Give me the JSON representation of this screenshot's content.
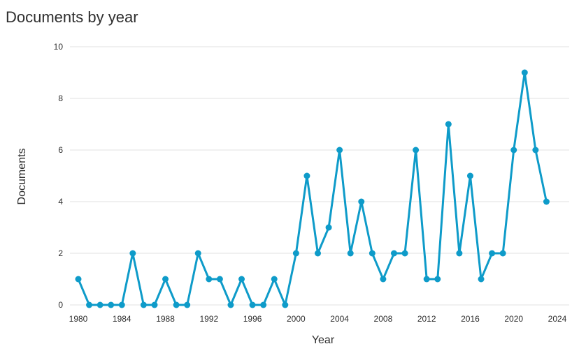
{
  "header": {
    "title": "Documents by year"
  },
  "chart_data": {
    "type": "line",
    "title": "Documents by year",
    "xlabel": "Year",
    "ylabel": "Documents",
    "xlim": [
      1980,
      2024
    ],
    "ylim": [
      0,
      10
    ],
    "grid": true,
    "line_color": "#0e9bc9",
    "x_ticks": [
      "1980",
      "1984",
      "1988",
      "1992",
      "1996",
      "2000",
      "2004",
      "2008",
      "2012",
      "2016",
      "2020",
      "2024"
    ],
    "y_ticks": [
      "0",
      "2",
      "4",
      "6",
      "8",
      "10"
    ],
    "x": [
      1980,
      1981,
      1982,
      1983,
      1984,
      1985,
      1986,
      1987,
      1988,
      1989,
      1990,
      1991,
      1992,
      1993,
      1994,
      1995,
      1996,
      1997,
      1998,
      1999,
      2000,
      2001,
      2002,
      2003,
      2004,
      2005,
      2006,
      2007,
      2008,
      2009,
      2010,
      2011,
      2012,
      2013,
      2014,
      2015,
      2016,
      2017,
      2018,
      2019,
      2020,
      2021,
      2022,
      2023
    ],
    "y": [
      1,
      0,
      0,
      0,
      0,
      2,
      0,
      0,
      1,
      0,
      0,
      2,
      1,
      1,
      0,
      1,
      0,
      0,
      1,
      0,
      2,
      5,
      2,
      3,
      6,
      2,
      4,
      2,
      1,
      2,
      2,
      6,
      1,
      1,
      7,
      2,
      5,
      1,
      2,
      2,
      6,
      9,
      6,
      4
    ]
  }
}
